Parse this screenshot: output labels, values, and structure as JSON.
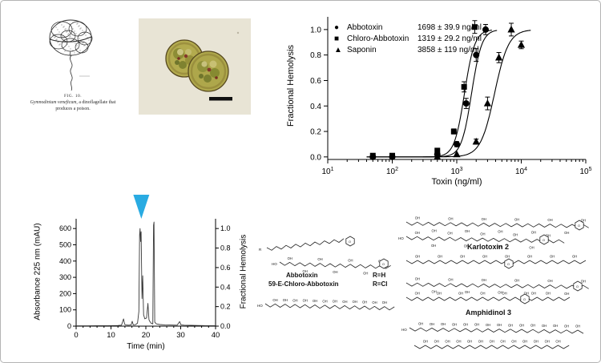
{
  "drawing_panel": {
    "fig_label": "FIG. 10.",
    "caption_italic": "Gymnodinium veneficum,",
    "caption_line2": "a dinoflagellate that produces",
    "caption_line3": "a poison."
  },
  "chart_data": [
    {
      "type": "scatter",
      "xlabel": "Toxin (ng/ml)",
      "ylabel": "Fractional Hemolysis",
      "xscale": "log",
      "xlim_exp": [
        1,
        5
      ],
      "ylim": [
        -0.02,
        1.1
      ],
      "yticks": [
        0.0,
        0.2,
        0.4,
        0.6,
        0.8,
        1.0
      ],
      "legend": [
        {
          "marker_glyph": "●",
          "name": "Abbotoxin",
          "ec50_label": "1698 ± 39.9 ng/ml"
        },
        {
          "marker_glyph": "■",
          "name": "Chloro-Abbotoxin",
          "ec50_label": "1319 ± 29.2 ng/ml"
        },
        {
          "marker_glyph": "▲",
          "name": "Saponin",
          "ec50_label": "3858 ± 119 ng/ml"
        }
      ],
      "series": [
        {
          "name": "Abbotoxin",
          "marker": "circle",
          "ec50": 1698,
          "hill": 5.5,
          "curve_range": [
            40,
            4200
          ],
          "x": [
            50,
            100,
            500,
            1000,
            1400,
            2000,
            2800
          ],
          "y": [
            0.0,
            0.0,
            0.02,
            0.1,
            0.42,
            0.8,
            1.0
          ],
          "yerr": [
            0,
            0,
            0,
            0.02,
            0.04,
            0.05,
            0.04
          ]
        },
        {
          "name": "Chloro-Abbotoxin",
          "marker": "square",
          "ec50": 1319,
          "hill": 5.5,
          "curve_range": [
            40,
            3500
          ],
          "x": [
            50,
            100,
            500,
            900,
            1300,
            1900
          ],
          "y": [
            0.01,
            0.01,
            0.05,
            0.2,
            0.55,
            1.02
          ],
          "yerr": [
            0,
            0,
            0,
            0.02,
            0.04,
            0.05
          ]
        },
        {
          "name": "Saponin",
          "marker": "triangle",
          "ec50": 3858,
          "hill": 4,
          "curve_range": [
            300,
            14000
          ],
          "x": [
            500,
            1000,
            2000,
            3000,
            4500,
            7000,
            10000
          ],
          "y": [
            0.0,
            0.02,
            0.12,
            0.42,
            0.78,
            1.0,
            0.88
          ],
          "yerr": [
            0,
            0,
            0.02,
            0.05,
            0.04,
            0.05,
            0.03
          ]
        }
      ]
    },
    {
      "type": "line",
      "xlabel": "Time (min)",
      "ylabel_left": "Absorbance 225 nm (mAU)",
      "ylabel_right": "Fractional Hemolysis",
      "xlim": [
        0,
        40
      ],
      "xticks": [
        0,
        10,
        20,
        30,
        40
      ],
      "ylim_left": [
        0,
        660
      ],
      "yticks_left": [
        0,
        100,
        200,
        300,
        400,
        500,
        600
      ],
      "yticks_right": [
        0.0,
        0.2,
        0.4,
        0.6,
        0.8,
        1.0
      ],
      "arrow_time_min": 18.7,
      "arrow_color": "#29abe2",
      "trace": {
        "t": [
          0,
          3,
          6,
          9,
          12,
          13,
          13.6,
          13.9,
          14.2,
          15,
          15.8,
          16.1,
          16.4,
          17,
          17.6,
          18.0,
          18.2,
          18.35,
          18.5,
          18.65,
          18.9,
          19.1,
          19.35,
          19.7,
          20.2,
          20.6,
          20.9,
          21.1,
          21.5,
          22.0,
          22.2,
          22.35,
          22.55,
          23,
          24,
          25.5,
          27,
          29,
          29.7,
          30.1,
          31,
          33,
          35,
          37,
          40
        ],
        "mau": [
          2,
          2,
          3,
          3,
          4,
          6,
          45,
          12,
          8,
          6,
          8,
          30,
          8,
          9,
          18,
          90,
          560,
          600,
          520,
          580,
          170,
          310,
          70,
          45,
          50,
          140,
          40,
          30,
          18,
          14,
          620,
          640,
          25,
          14,
          10,
          8,
          7,
          6,
          28,
          8,
          6,
          5,
          4,
          3,
          3
        ]
      }
    }
  ],
  "structures": {
    "atoms": {
      "oh": "OH",
      "ho": "HO",
      "r": "R",
      "cl": "Cl",
      "o": "O"
    },
    "items": [
      {
        "name": "Abbotoxin",
        "r_label": "R=H"
      },
      {
        "name": "59-E-Chloro-Abbotoxin",
        "r_label": "R=Cl"
      },
      {
        "name": "Karlotoxin 2"
      },
      {
        "name": "Amphidinol 3"
      }
    ]
  }
}
